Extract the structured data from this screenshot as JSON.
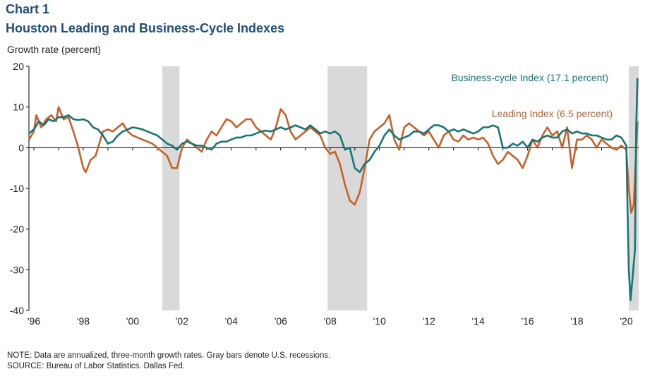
{
  "header": {
    "chart_num": "Chart 1",
    "title": "Houston Leading and Business-Cycle Indexes",
    "ylabel": "Growth rate (percent)"
  },
  "notes": {
    "note": "NOTE: Data are annualized, three-month growth rates. Gray bars denote U.S. recessions.",
    "source": "SOURCE: Bureau of Labor Statistics. Dallas Fed."
  },
  "colors": {
    "business": "#1a7476",
    "leading": "#c8602a",
    "recession": "#d9d9d9"
  },
  "chart_data": {
    "type": "line",
    "title": "Houston Leading and Business-Cycle Indexes",
    "ylabel": "Growth rate (percent)",
    "xlabel": "",
    "xlim": [
      1995.8,
      2020.5
    ],
    "ylim": [
      -40,
      20
    ],
    "yticks": [
      20,
      10,
      0,
      -10,
      -20,
      -30,
      -40
    ],
    "xticks": [
      {
        "x": 1996.0,
        "label": "'96"
      },
      {
        "x": 1998.0,
        "label": "'98"
      },
      {
        "x": 2000.0,
        "label": "'00"
      },
      {
        "x": 2002.0,
        "label": "'02"
      },
      {
        "x": 2004.0,
        "label": "'04"
      },
      {
        "x": 2006.0,
        "label": "'06"
      },
      {
        "x": 2008.0,
        "label": "'08"
      },
      {
        "x": 2010.0,
        "label": "'10"
      },
      {
        "x": 2012.0,
        "label": "'12"
      },
      {
        "x": 2014.0,
        "label": "'14"
      },
      {
        "x": 2016.0,
        "label": "'16"
      },
      {
        "x": 2018.0,
        "label": "'18"
      },
      {
        "x": 2020.0,
        "label": "'20"
      }
    ],
    "recessions": [
      [
        2001.2,
        2001.9
      ],
      [
        2007.9,
        2009.5
      ],
      [
        2020.1,
        2020.5
      ]
    ],
    "series": [
      {
        "name": "Business-cycle Index",
        "label": "Business-cycle Index  (17.1 percent)",
        "color": "#1a7476",
        "points": [
          [
            1995.8,
            3.5
          ],
          [
            1996.0,
            4.5
          ],
          [
            1996.2,
            6.5
          ],
          [
            1996.4,
            5.5
          ],
          [
            1996.6,
            7
          ],
          [
            1996.8,
            6.5
          ],
          [
            1997.0,
            7.5
          ],
          [
            1997.2,
            7.5
          ],
          [
            1997.4,
            8
          ],
          [
            1997.6,
            7
          ],
          [
            1997.8,
            6.8
          ],
          [
            1998.0,
            7
          ],
          [
            1998.2,
            6.5
          ],
          [
            1998.4,
            5
          ],
          [
            1998.6,
            4.5
          ],
          [
            1998.8,
            3
          ],
          [
            1999.0,
            1
          ],
          [
            1999.2,
            1.5
          ],
          [
            1999.4,
            3
          ],
          [
            1999.6,
            4
          ],
          [
            1999.8,
            4.5
          ],
          [
            2000.0,
            5
          ],
          [
            2000.2,
            4.8
          ],
          [
            2000.4,
            4.5
          ],
          [
            2000.6,
            4
          ],
          [
            2000.8,
            3.5
          ],
          [
            2001.0,
            3
          ],
          [
            2001.2,
            2
          ],
          [
            2001.4,
            1
          ],
          [
            2001.6,
            0.5
          ],
          [
            2001.8,
            -0.5
          ],
          [
            2002.0,
            1
          ],
          [
            2002.2,
            1.5
          ],
          [
            2002.4,
            1
          ],
          [
            2002.6,
            0.5
          ],
          [
            2002.8,
            0.5
          ],
          [
            2003.0,
            0
          ],
          [
            2003.2,
            -0.5
          ],
          [
            2003.4,
            1
          ],
          [
            2003.6,
            1.5
          ],
          [
            2003.8,
            1.5
          ],
          [
            2004.0,
            2
          ],
          [
            2004.2,
            2.5
          ],
          [
            2004.4,
            2.5
          ],
          [
            2004.6,
            3
          ],
          [
            2004.8,
            3
          ],
          [
            2005.0,
            3.5
          ],
          [
            2005.2,
            4
          ],
          [
            2005.4,
            4.2
          ],
          [
            2005.6,
            4
          ],
          [
            2005.8,
            4.5
          ],
          [
            2006.0,
            5
          ],
          [
            2006.2,
            4.5
          ],
          [
            2006.4,
            5
          ],
          [
            2006.6,
            5.5
          ],
          [
            2006.8,
            5
          ],
          [
            2007.0,
            4.5
          ],
          [
            2007.2,
            5.5
          ],
          [
            2007.4,
            4.5
          ],
          [
            2007.6,
            3.5
          ],
          [
            2007.8,
            4
          ],
          [
            2008.0,
            3.5
          ],
          [
            2008.2,
            4
          ],
          [
            2008.4,
            3
          ],
          [
            2008.6,
            -0.5
          ],
          [
            2008.8,
            0
          ],
          [
            2009.0,
            -5
          ],
          [
            2009.2,
            -6
          ],
          [
            2009.4,
            -4
          ],
          [
            2009.6,
            -3
          ],
          [
            2009.8,
            -1
          ],
          [
            2010.0,
            0.5
          ],
          [
            2010.2,
            3
          ],
          [
            2010.4,
            4.5
          ],
          [
            2010.6,
            3
          ],
          [
            2010.8,
            2
          ],
          [
            2011.0,
            2.5
          ],
          [
            2011.2,
            3
          ],
          [
            2011.4,
            4
          ],
          [
            2011.6,
            4
          ],
          [
            2011.8,
            3.5
          ],
          [
            2012.0,
            4.5
          ],
          [
            2012.2,
            5.5
          ],
          [
            2012.4,
            5.5
          ],
          [
            2012.6,
            5
          ],
          [
            2012.8,
            4
          ],
          [
            2013.0,
            4.5
          ],
          [
            2013.2,
            4
          ],
          [
            2013.4,
            4.5
          ],
          [
            2013.6,
            4
          ],
          [
            2013.8,
            3.5
          ],
          [
            2014.0,
            4
          ],
          [
            2014.2,
            5
          ],
          [
            2014.4,
            5
          ],
          [
            2014.6,
            5.5
          ],
          [
            2014.8,
            5
          ],
          [
            2015.0,
            0
          ],
          [
            2015.2,
            0
          ],
          [
            2015.4,
            1
          ],
          [
            2015.6,
            0.5
          ],
          [
            2015.8,
            1.5
          ],
          [
            2016.0,
            0
          ],
          [
            2016.2,
            2
          ],
          [
            2016.4,
            1.5
          ],
          [
            2016.6,
            2.5
          ],
          [
            2016.8,
            3
          ],
          [
            2017.0,
            2.5
          ],
          [
            2017.2,
            2.5
          ],
          [
            2017.4,
            4
          ],
          [
            2017.6,
            4.5
          ],
          [
            2017.8,
            3.5
          ],
          [
            2018.0,
            4
          ],
          [
            2018.2,
            3.5
          ],
          [
            2018.4,
            3.5
          ],
          [
            2018.6,
            3
          ],
          [
            2018.8,
            3
          ],
          [
            2019.0,
            2.5
          ],
          [
            2019.2,
            2
          ],
          [
            2019.4,
            2
          ],
          [
            2019.6,
            3
          ],
          [
            2019.8,
            2.5
          ],
          [
            2020.0,
            0.5
          ],
          [
            2020.1,
            -30
          ],
          [
            2020.17,
            -37.5
          ],
          [
            2020.25,
            -32
          ],
          [
            2020.35,
            -25
          ],
          [
            2020.4,
            5
          ],
          [
            2020.45,
            17.1
          ]
        ]
      },
      {
        "name": "Leading Index",
        "label": "Leading Index  (6.5 percent)",
        "color": "#c8602a",
        "points": [
          [
            1995.8,
            2
          ],
          [
            1996.0,
            4
          ],
          [
            1996.1,
            8
          ],
          [
            1996.3,
            5
          ],
          [
            1996.5,
            7
          ],
          [
            1996.7,
            8
          ],
          [
            1996.9,
            6.5
          ],
          [
            1997.0,
            10
          ],
          [
            1997.2,
            7
          ],
          [
            1997.4,
            7.5
          ],
          [
            1997.6,
            4
          ],
          [
            1997.8,
            0
          ],
          [
            1998.0,
            -5
          ],
          [
            1998.1,
            -6
          ],
          [
            1998.3,
            -3
          ],
          [
            1998.5,
            -2
          ],
          [
            1998.7,
            2
          ],
          [
            1998.8,
            4
          ],
          [
            1999.0,
            4.5
          ],
          [
            1999.2,
            4
          ],
          [
            1999.4,
            5
          ],
          [
            1999.6,
            6
          ],
          [
            1999.8,
            4
          ],
          [
            2000.0,
            3
          ],
          [
            2000.2,
            2.5
          ],
          [
            2000.4,
            2
          ],
          [
            2000.6,
            1.5
          ],
          [
            2000.8,
            1
          ],
          [
            2001.0,
            0
          ],
          [
            2001.2,
            -1
          ],
          [
            2001.4,
            -2
          ],
          [
            2001.6,
            -5
          ],
          [
            2001.8,
            -5
          ],
          [
            2002.0,
            0
          ],
          [
            2002.2,
            2
          ],
          [
            2002.4,
            1
          ],
          [
            2002.6,
            0
          ],
          [
            2002.8,
            -1
          ],
          [
            2003.0,
            2
          ],
          [
            2003.2,
            4
          ],
          [
            2003.4,
            3
          ],
          [
            2003.6,
            5
          ],
          [
            2003.8,
            7
          ],
          [
            2004.0,
            6.5
          ],
          [
            2004.2,
            5
          ],
          [
            2004.4,
            6
          ],
          [
            2004.6,
            7
          ],
          [
            2004.8,
            7
          ],
          [
            2005.0,
            5
          ],
          [
            2005.2,
            4
          ],
          [
            2005.4,
            3
          ],
          [
            2005.6,
            2
          ],
          [
            2005.8,
            5
          ],
          [
            2006.0,
            9.5
          ],
          [
            2006.2,
            8
          ],
          [
            2006.4,
            4
          ],
          [
            2006.6,
            2
          ],
          [
            2006.8,
            3
          ],
          [
            2007.0,
            4
          ],
          [
            2007.2,
            5
          ],
          [
            2007.4,
            4
          ],
          [
            2007.6,
            3
          ],
          [
            2007.8,
            0
          ],
          [
            2008.0,
            -1.5
          ],
          [
            2008.2,
            -1
          ],
          [
            2008.4,
            -4
          ],
          [
            2008.6,
            -9
          ],
          [
            2008.8,
            -13
          ],
          [
            2009.0,
            -14
          ],
          [
            2009.2,
            -11
          ],
          [
            2009.4,
            -5
          ],
          [
            2009.6,
            2
          ],
          [
            2009.8,
            4
          ],
          [
            2010.0,
            5
          ],
          [
            2010.2,
            6
          ],
          [
            2010.4,
            8
          ],
          [
            2010.6,
            2
          ],
          [
            2010.8,
            -0.5
          ],
          [
            2011.0,
            5
          ],
          [
            2011.2,
            6
          ],
          [
            2011.4,
            5
          ],
          [
            2011.6,
            4
          ],
          [
            2011.8,
            3
          ],
          [
            2012.0,
            4
          ],
          [
            2012.2,
            2
          ],
          [
            2012.4,
            0
          ],
          [
            2012.6,
            3
          ],
          [
            2012.8,
            4
          ],
          [
            2013.0,
            2
          ],
          [
            2013.2,
            1.5
          ],
          [
            2013.4,
            3
          ],
          [
            2013.6,
            2
          ],
          [
            2013.8,
            2.5
          ],
          [
            2014.0,
            2
          ],
          [
            2014.2,
            2.5
          ],
          [
            2014.4,
            1
          ],
          [
            2014.6,
            -2
          ],
          [
            2014.8,
            -4
          ],
          [
            2015.0,
            -3
          ],
          [
            2015.2,
            -1
          ],
          [
            2015.4,
            -2
          ],
          [
            2015.6,
            -3
          ],
          [
            2015.8,
            -5
          ],
          [
            2016.0,
            -2
          ],
          [
            2016.2,
            2
          ],
          [
            2016.4,
            0
          ],
          [
            2016.6,
            3
          ],
          [
            2016.8,
            5
          ],
          [
            2017.0,
            3
          ],
          [
            2017.2,
            4
          ],
          [
            2017.4,
            0
          ],
          [
            2017.6,
            5
          ],
          [
            2017.8,
            -5
          ],
          [
            2018.0,
            2
          ],
          [
            2018.2,
            2
          ],
          [
            2018.4,
            3
          ],
          [
            2018.6,
            2
          ],
          [
            2018.8,
            0
          ],
          [
            2019.0,
            2
          ],
          [
            2019.2,
            1
          ],
          [
            2019.4,
            0
          ],
          [
            2019.6,
            -0.5
          ],
          [
            2019.8,
            0.5
          ],
          [
            2020.0,
            -0.5
          ],
          [
            2020.1,
            -10
          ],
          [
            2020.2,
            -16
          ],
          [
            2020.3,
            -14
          ],
          [
            2020.45,
            6.5
          ]
        ]
      }
    ]
  }
}
